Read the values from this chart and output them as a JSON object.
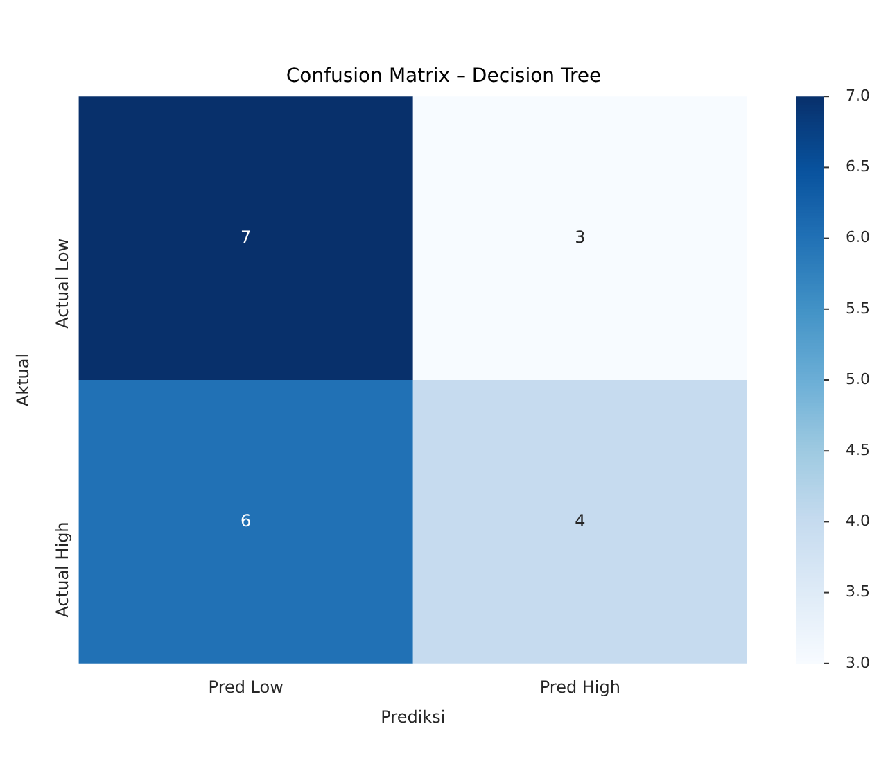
{
  "chart_data": {
    "type": "heatmap",
    "title": "Confusion Matrix – Decision Tree",
    "xlabel": "Prediksi",
    "ylabel": "Aktual",
    "categories": [
      "Pred Low",
      "Pred High"
    ],
    "y_categories": [
      "Actual Low",
      "Actual High"
    ],
    "cells": [
      [
        7,
        3
      ],
      [
        6,
        4
      ]
    ],
    "data_labels": true,
    "clim": [
      3,
      7
    ],
    "cticks": [
      {
        "value": 3,
        "label": "3.0"
      },
      {
        "value": 3.5,
        "label": "3.5"
      },
      {
        "value": 4,
        "label": "4.0"
      },
      {
        "value": 4.5,
        "label": "4.5"
      },
      {
        "value": 5,
        "label": "5.0"
      },
      {
        "value": 5.5,
        "label": "5.5"
      },
      {
        "value": 6,
        "label": "6.0"
      },
      {
        "value": 6.5,
        "label": "6.5"
      },
      {
        "value": 7,
        "label": "7.0"
      }
    ]
  }
}
